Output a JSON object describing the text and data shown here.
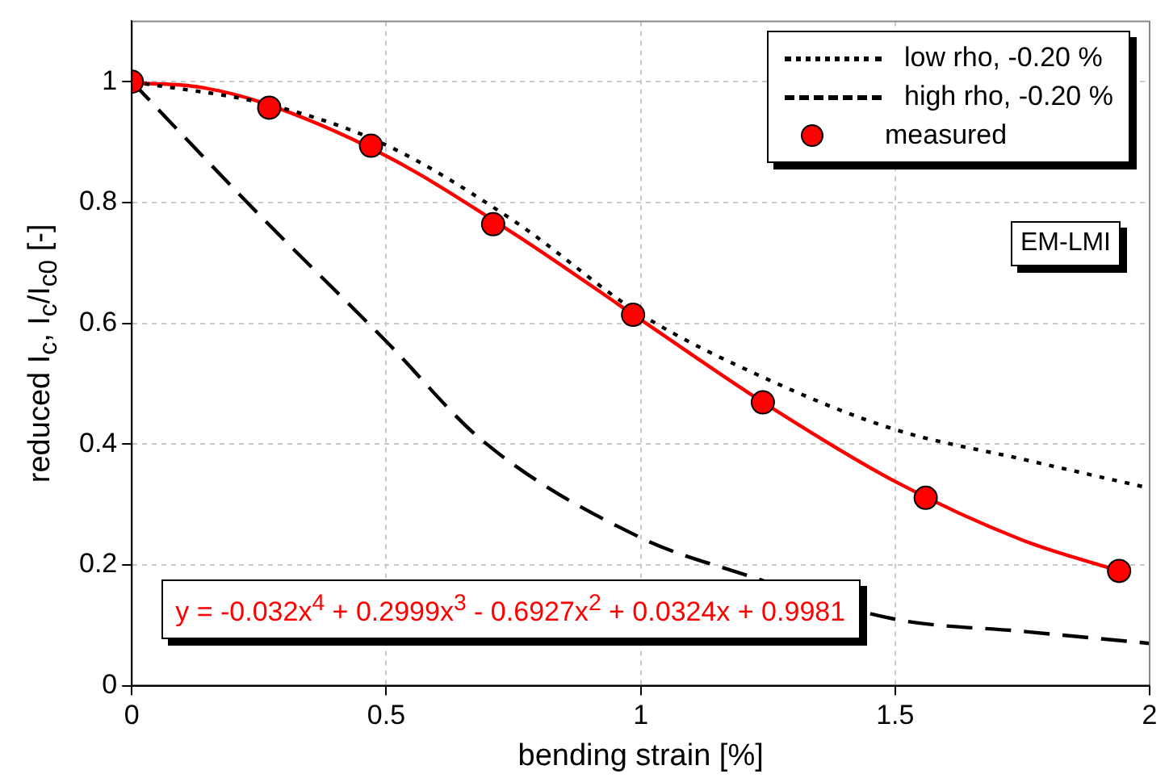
{
  "chart_data": {
    "type": "line",
    "xlabel": "bending strain [%]",
    "ylabel": "reduced I$_{c}$, I$_{c}$/I$_{c0}$ [-]",
    "xlim": [
      0,
      2
    ],
    "ylim": [
      0,
      1.1
    ],
    "xticks": [
      0,
      0.5,
      1,
      1.5,
      2
    ],
    "yticks": [
      0,
      0.2,
      0.4,
      0.6,
      0.8,
      1
    ],
    "grid": true,
    "legend": "top right",
    "annotations": [
      "EM-LMI",
      "y = -0.032x$^{4}$ + 0.2999x$^{3}$ - 0.6927x$^{2}$ + 0.0324x + 0.9981"
    ],
    "series": [
      {
        "name": "low rho, -0.20 %",
        "type": "line",
        "color": "#000000",
        "line_style": "dotted",
        "marker": "none",
        "x": [
          0,
          0.27,
          0.5,
          0.75,
          1,
          1.25,
          1.5,
          1.75,
          2
        ],
        "values": [
          1,
          0.962,
          0.895,
          0.77,
          0.615,
          0.507,
          0.424,
          0.375,
          0.327
        ]
      },
      {
        "name": "high rho, -0.20 %",
        "type": "line",
        "color": "#000000",
        "line_style": "dashed",
        "marker": "none",
        "x": [
          0,
          0.25,
          0.5,
          0.69,
          1,
          1.2,
          1.5,
          1.75,
          2
        ],
        "values": [
          1,
          0.78,
          0.57,
          0.405,
          0.245,
          0.185,
          0.11,
          0.09,
          0.07
        ]
      },
      {
        "type": "line",
        "color": "#ff0000",
        "line_style": "solid",
        "marker": "none",
        "x": [
          0,
          0.125,
          0.25,
          0.5,
          0.75,
          1,
          1.25,
          1.5,
          1.75,
          1.94
        ],
        "values": [
          0.998,
          0.992,
          0.967,
          0.877,
          0.749,
          0.606,
          0.464,
          0.338,
          0.241,
          0.19
        ]
      },
      {
        "name": "measured",
        "type": "scatter",
        "color": "#ff0000",
        "marker": "circle",
        "x": [
          0,
          0.27,
          0.47,
          0.71,
          0.985,
          1.24,
          1.56,
          1.94
        ],
        "values": [
          1,
          0.957,
          0.894,
          0.764,
          0.614,
          0.469,
          0.311,
          0.19
        ]
      }
    ]
  }
}
